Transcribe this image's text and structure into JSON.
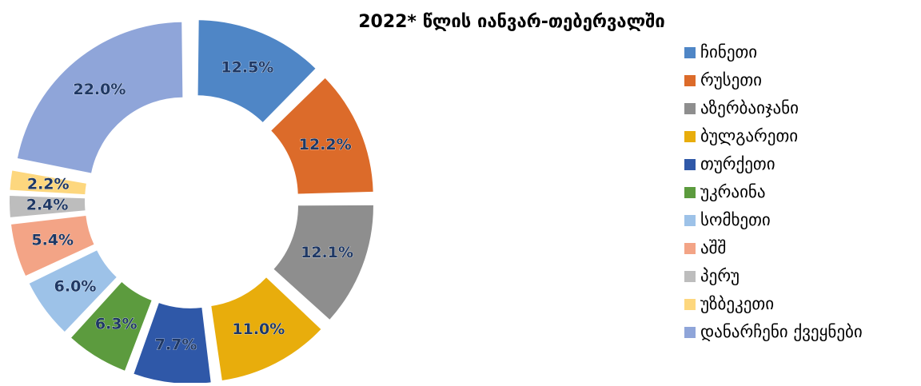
{
  "chart_data": {
    "type": "donut",
    "title": "2022* წლის იანვარ-თებერვალში",
    "categories": [
      "ჩინეთი",
      "რუსეთი",
      "აზერბაიჯანი",
      "ბულგარეთი",
      "თურქეთი",
      "უკრაინა",
      "სომხეთი",
      "აშშ",
      "პერუ",
      "უზბეკეთი",
      "დანარჩენი ქვეყნები"
    ],
    "values": [
      12.5,
      12.2,
      12.1,
      11.0,
      7.7,
      6.3,
      6.0,
      5.4,
      2.4,
      2.2,
      22.0
    ],
    "value_labels": [
      "12.5%",
      "12.2%",
      "12.1%",
      "11.0%",
      "7.7%",
      "6.3%",
      "6.0%",
      "5.4%",
      "2.4%",
      "2.2%",
      "22.0%"
    ],
    "colors": [
      "#4f86c6",
      "#dc6b2a",
      "#8e8e8e",
      "#e8ad0c",
      "#2f58a8",
      "#5c9b3e",
      "#9dc2e8",
      "#f3a486",
      "#bdbdbd",
      "#fdd77e",
      "#8fa5d9"
    ],
    "legend": "right"
  }
}
